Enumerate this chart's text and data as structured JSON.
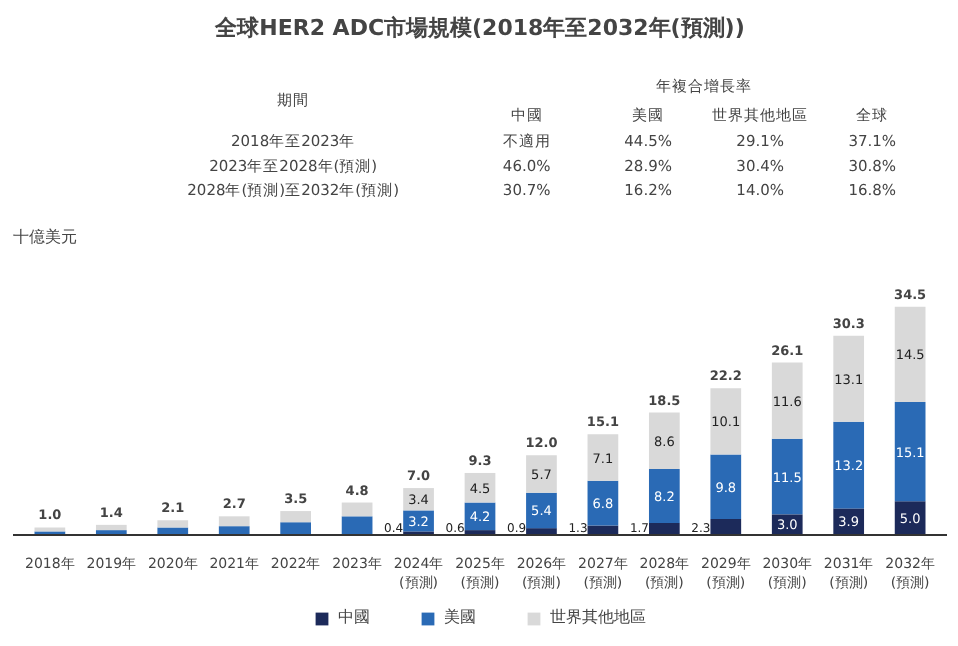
{
  "chart_data": {
    "type": "bar",
    "stacked": true,
    "title": "全球HER2 ADC市場規模(2018年至2032年(預測))",
    "categories": [
      "2018年",
      "2019年",
      "2020年",
      "2021年",
      "2022年",
      "2023年",
      "2024年\n(預測)",
      "2025年\n(預測)",
      "2026年\n(預測)",
      "2027年\n(預測)",
      "2028年\n(預測)",
      "2029年\n(預測)",
      "2030年\n(預測)",
      "2031年\n(預測)",
      "2032年\n(預測)"
    ],
    "series": [
      {
        "name": "中國",
        "color": "#1c2a5a",
        "values": [
          null,
          null,
          null,
          null,
          null,
          null,
          0.4,
          0.6,
          0.9,
          1.3,
          1.7,
          2.3,
          3.0,
          3.9,
          5.0
        ],
        "value_labels": [
          null,
          null,
          null,
          null,
          null,
          null,
          "0.4",
          "0.6",
          "0.9",
          "1.3",
          "1.7",
          "2.3",
          "3.0",
          "3.9",
          "5.0"
        ]
      },
      {
        "name": "美國",
        "color": "#2a6ab5",
        "values": [
          0.4,
          0.6,
          1.0,
          1.2,
          1.8,
          2.7,
          3.2,
          4.2,
          5.4,
          6.8,
          8.2,
          9.8,
          11.5,
          13.2,
          15.1
        ],
        "value_labels": [
          null,
          null,
          null,
          null,
          null,
          null,
          "3.2",
          "4.2",
          "5.4",
          "6.8",
          "8.2",
          "9.8",
          "11.5",
          "13.2",
          "15.1"
        ]
      },
      {
        "name": "世界其他地區",
        "color": "#d9d9d9",
        "values": [
          0.6,
          0.8,
          1.1,
          1.5,
          1.7,
          2.1,
          3.4,
          4.5,
          5.7,
          7.1,
          8.6,
          10.1,
          11.6,
          13.1,
          14.5
        ],
        "value_labels": [
          null,
          null,
          null,
          null,
          null,
          null,
          "3.4",
          "4.5",
          "5.7",
          "7.1",
          "8.6",
          "10.1",
          "11.6",
          "13.1",
          "14.5"
        ]
      }
    ],
    "totals": [
      "1.0",
      "1.4",
      "2.1",
      "2.7",
      "3.5",
      "4.8",
      "7.0",
      "9.3",
      "12.0",
      "15.1",
      "18.5",
      "22.2",
      "26.1",
      "30.3",
      "34.5"
    ],
    "annotations": [
      "期間",
      "年複合增長率",
      "中國",
      "美國",
      "世界其他地區",
      "全球",
      "2018年至2023年",
      "不適用",
      "44.5%",
      "29.1%",
      "37.1%",
      "2023年至2028年(預測)",
      "46.0%",
      "28.9%",
      "30.4%",
      "30.8%",
      "2028年(預測)至2032年(預測)",
      "30.7%",
      "16.2%",
      "14.0%",
      "16.8%",
      "十億美元"
    ],
    "legend": "bottom",
    "grid": false
  }
}
